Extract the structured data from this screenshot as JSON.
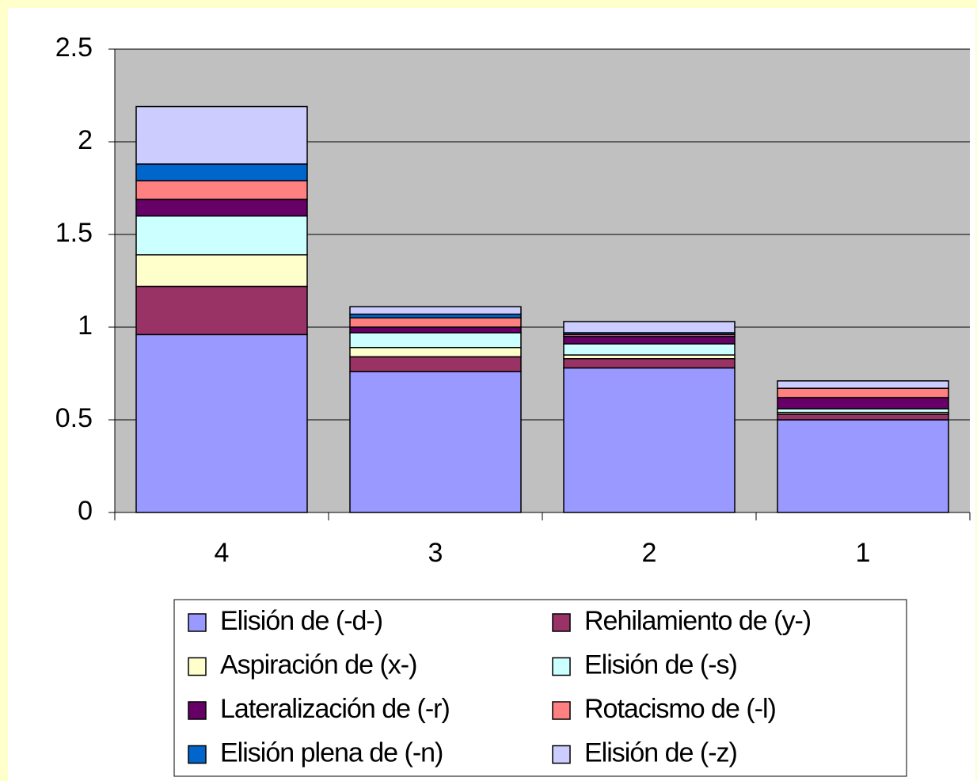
{
  "chart_data": {
    "type": "stacked_bar",
    "categories": [
      "4",
      "3",
      "2",
      "1"
    ],
    "series": [
      {
        "name": "Elisión de (-d-)",
        "color": "#9999ff",
        "values": [
          0.96,
          0.76,
          0.78,
          0.5
        ]
      },
      {
        "name": "Rehilamiento de (y-)",
        "color": "#993366",
        "values": [
          0.26,
          0.08,
          0.05,
          0.03
        ]
      },
      {
        "name": "Aspiración de (x-)",
        "color": "#ffffcc",
        "values": [
          0.17,
          0.05,
          0.02,
          0.01
        ]
      },
      {
        "name": "Elisión de (-s)",
        "color": "#ccffff",
        "values": [
          0.21,
          0.08,
          0.06,
          0.02
        ]
      },
      {
        "name": "Lateralización de (-r)",
        "color": "#660066",
        "values": [
          0.09,
          0.03,
          0.04,
          0.06
        ]
      },
      {
        "name": "Rotacismo de (-l)",
        "color": "#ff8080",
        "values": [
          0.1,
          0.05,
          0.01,
          0.05
        ]
      },
      {
        "name": "Elisión plena de (-n)",
        "color": "#0066cc",
        "values": [
          0.09,
          0.02,
          0.01,
          0.0
        ]
      },
      {
        "name": "Elisión de (-z)",
        "color": "#ccccff",
        "values": [
          0.31,
          0.04,
          0.06,
          0.04
        ]
      }
    ],
    "ylim": [
      0,
      2.5
    ],
    "yticks": [
      0,
      0.5,
      1,
      1.5,
      2,
      2.5
    ],
    "grid": true
  }
}
